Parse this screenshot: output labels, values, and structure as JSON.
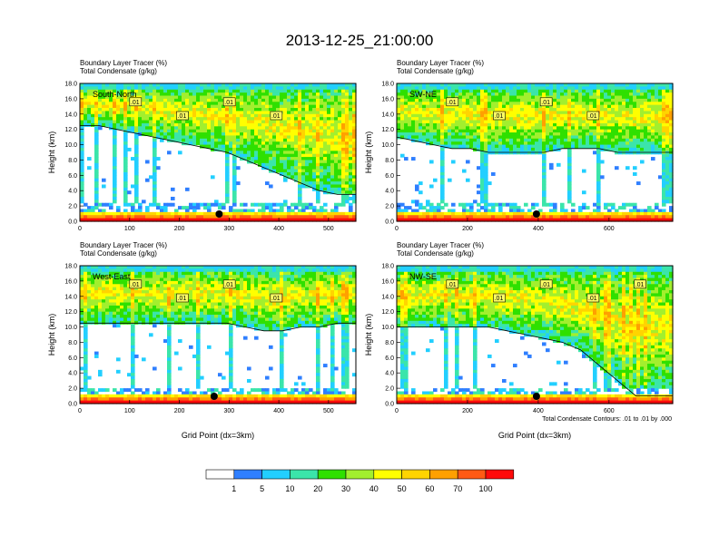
{
  "title": "2013-12-25_21:00:00",
  "footnote": "Total Condensate Contours: .01 to .01 by .000",
  "colorbar": {
    "colors": [
      "#ffffff",
      "#2f7fff",
      "#22cfff",
      "#3be5aa",
      "#2fe000",
      "#a2ef2e",
      "#ffff00",
      "#ffd400",
      "#ffa000",
      "#ff5a14",
      "#ff0a0a"
    ],
    "labels": [
      "1",
      "5",
      "10",
      "20",
      "30",
      "40",
      "50",
      "60",
      "70",
      "100"
    ]
  },
  "chart_data": [
    {
      "type": "heatmap",
      "panel_label": "South-North",
      "header_line1": "Boundary Layer Tracer    (%)",
      "header_line2": "Total Condensate    (g/kg)",
      "ylabel": "Height (km)",
      "xlabel": "",
      "xlim": [
        0,
        555
      ],
      "ylim": [
        0,
        18
      ],
      "xticks": [
        0,
        100,
        200,
        300,
        400,
        500
      ],
      "yticks": [
        "0.0",
        "2.0",
        "4.0",
        "6.0",
        "8.0",
        "10.0",
        "12.0",
        "14.0",
        "16.0",
        "18.0"
      ],
      "marker_x": 280,
      "contour_labels": [
        ".01",
        ".01",
        ".01",
        ".01"
      ],
      "cloud_base_km": [
        12.5,
        12.5,
        12,
        11.5,
        11,
        10.5,
        10,
        9.5,
        9,
        8,
        7,
        6,
        5,
        4,
        3.5,
        3.5
      ],
      "low_cloud_top_km": 2.5
    },
    {
      "type": "heatmap",
      "panel_label": "SW-NE",
      "header_line1": "Boundary Layer Tracer    (%)",
      "header_line2": "Total Condensate    (g/kg)",
      "ylabel": "Height (km)",
      "xlabel": "",
      "xlim": [
        0,
        780
      ],
      "ylim": [
        0,
        18
      ],
      "xticks": [
        0,
        200,
        400,
        600
      ],
      "yticks": [
        "0.0",
        "2.0",
        "4.0",
        "6.0",
        "8.0",
        "10.0",
        "12.0",
        "14.0",
        "16.0",
        "18.0"
      ],
      "marker_x": 395,
      "contour_labels": [
        ".01",
        ".01",
        ".01",
        ".01"
      ],
      "cloud_base_km": [
        11,
        10.5,
        10,
        9.5,
        9.5,
        9,
        9,
        9,
        9,
        9.5,
        9.5,
        9.5,
        9,
        9,
        9,
        9
      ],
      "low_cloud_top_km": 2.5
    },
    {
      "type": "heatmap",
      "panel_label": "West-East",
      "header_line1": "Boundary Layer Tracer    (%)",
      "header_line2": "Total Condensate    (g/kg)",
      "ylabel": "Height (km)",
      "xlabel": "Grid Point (dx=3km)",
      "xlim": [
        0,
        555
      ],
      "ylim": [
        0,
        18
      ],
      "xticks": [
        0,
        100,
        200,
        300,
        400,
        500
      ],
      "yticks": [
        "0.0",
        "2.0",
        "4.0",
        "6.0",
        "8.0",
        "10.0",
        "12.0",
        "14.0",
        "16.0",
        "18.0"
      ],
      "marker_x": 270,
      "contour_labels": [
        ".01",
        ".01",
        ".01",
        ".01"
      ],
      "cloud_base_km": [
        10.5,
        10.5,
        10.5,
        10.5,
        10.5,
        10.5,
        10.5,
        10.5,
        10.5,
        10,
        9.5,
        9.5,
        10,
        10,
        10.5,
        10.5
      ],
      "low_cloud_top_km": 2.0
    },
    {
      "type": "heatmap",
      "panel_label": "NW-SE",
      "header_line1": "Boundary Layer Tracer    (%)",
      "header_line2": "Total Condensate    (g/kg)",
      "ylabel": "Height (km)",
      "xlabel": "Grid Point (dx=3km)",
      "xlim": [
        0,
        780
      ],
      "ylim": [
        0,
        18
      ],
      "xticks": [
        0,
        200,
        400,
        600
      ],
      "yticks": [
        "0.0",
        "2.0",
        "4.0",
        "6.0",
        "8.0",
        "10.0",
        "12.0",
        "14.0",
        "16.0",
        "18.0"
      ],
      "marker_x": 395,
      "contour_labels": [
        ".01",
        ".01",
        ".01",
        ".01",
        ".01"
      ],
      "cloud_base_km": [
        10,
        10,
        10,
        10,
        10,
        10,
        9.5,
        9,
        8.5,
        8,
        7,
        5,
        3,
        1,
        1,
        1
      ],
      "low_cloud_top_km": 2.0
    }
  ]
}
